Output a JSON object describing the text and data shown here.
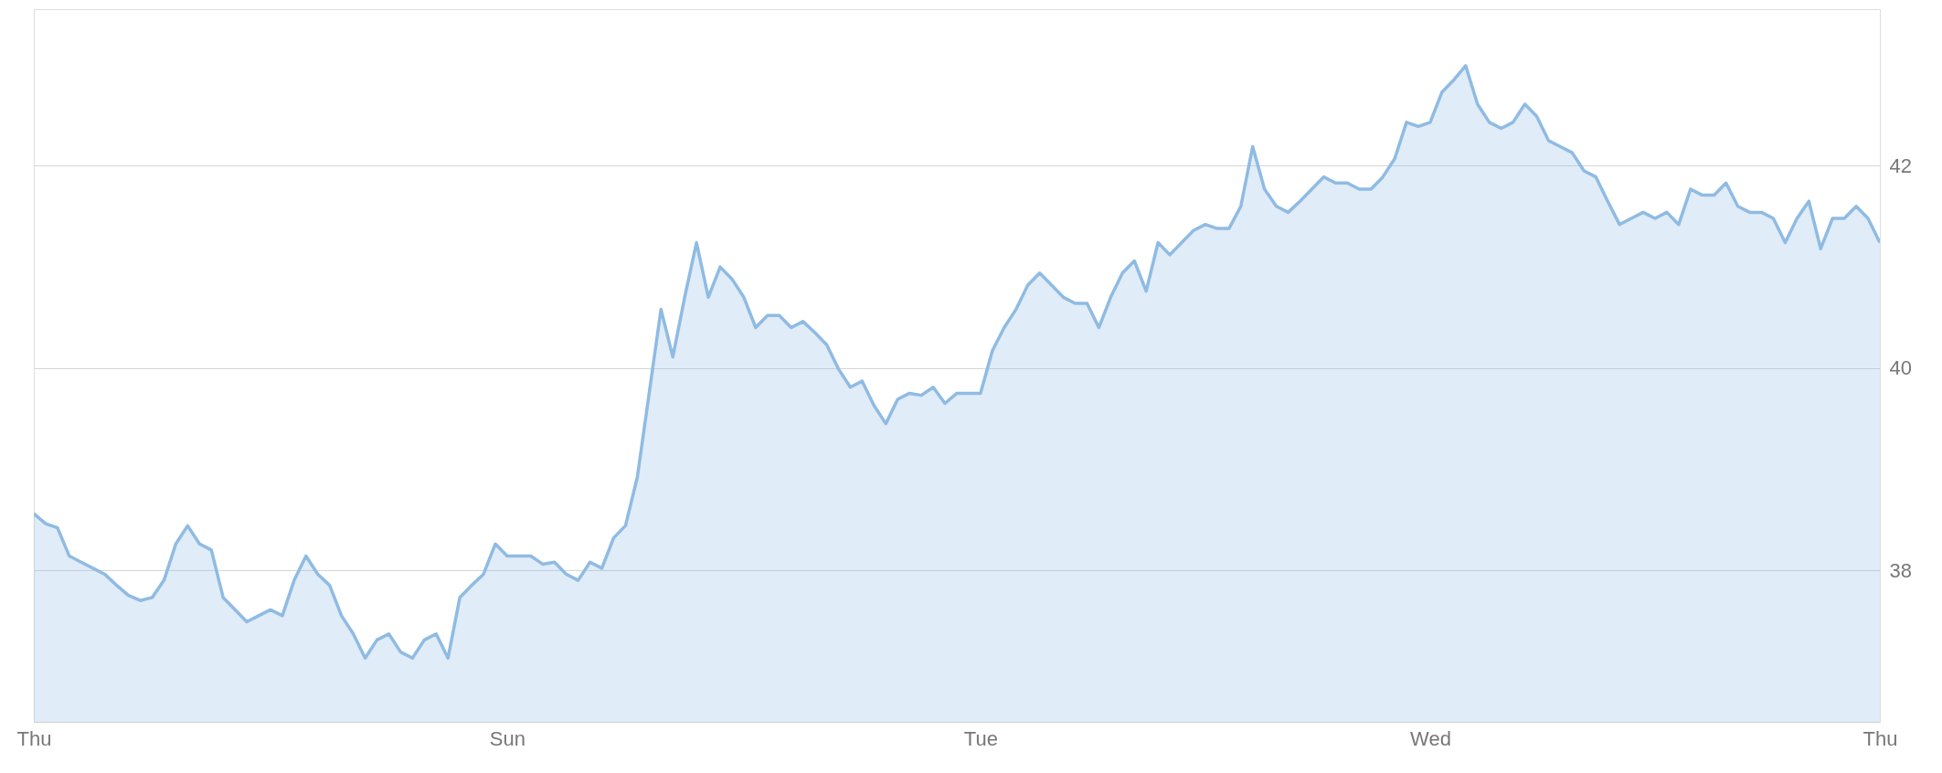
{
  "chart_data": {
    "type": "area",
    "categories": [
      "Thu",
      null,
      null,
      null,
      null,
      null,
      null,
      null,
      null,
      null,
      null,
      null,
      null,
      null,
      null,
      null,
      null,
      null,
      null,
      null,
      null,
      null,
      null,
      null,
      null,
      null,
      null,
      null,
      null,
      null,
      null,
      null,
      null,
      null,
      null,
      null,
      null,
      null,
      null,
      null,
      "Sun",
      null,
      null,
      null,
      null,
      null,
      null,
      null,
      null,
      null,
      null,
      null,
      null,
      null,
      null,
      null,
      null,
      null,
      null,
      null,
      null,
      null,
      null,
      null,
      null,
      null,
      null,
      null,
      null,
      null,
      null,
      null,
      null,
      null,
      null,
      null,
      null,
      null,
      null,
      null,
      "Tue",
      null,
      null,
      null,
      null,
      null,
      null,
      null,
      null,
      null,
      null,
      null,
      null,
      null,
      null,
      null,
      null,
      null,
      null,
      null,
      null,
      null,
      null,
      null,
      null,
      null,
      null,
      null,
      null,
      null,
      null,
      null,
      null,
      null,
      null,
      null,
      null,
      null,
      "Wed",
      null,
      null,
      null,
      null,
      null,
      null,
      null,
      null,
      null,
      null,
      null,
      null,
      null,
      null,
      null,
      null,
      null,
      null,
      null,
      null,
      null,
      null,
      null,
      null,
      null,
      null,
      null,
      null,
      null,
      null,
      null,
      null,
      null,
      null,
      null,
      null,
      null,
      "Thu"
    ],
    "ylim": [
      36.5,
      43.55
    ],
    "yticks": [
      38,
      40,
      42
    ],
    "grid": "y",
    "marker": "none",
    "line_style": "solid",
    "series": [
      {
        "color": "#8fbbe3",
        "values": [
          38.56,
          38.46,
          38.42,
          38.14,
          38.08,
          38.02,
          37.96,
          37.85,
          37.75,
          37.7,
          37.73,
          37.9,
          38.26,
          38.44,
          38.26,
          38.2,
          37.73,
          37.61,
          37.49,
          37.55,
          37.61,
          37.55,
          37.9,
          38.14,
          37.96,
          37.85,
          37.55,
          37.37,
          37.13,
          37.31,
          37.37,
          37.19,
          37.13,
          37.31,
          37.37,
          37.13,
          37.73,
          37.85,
          37.96,
          38.26,
          38.14,
          38.14,
          38.14,
          38.06,
          38.08,
          37.96,
          37.9,
          38.08,
          38.02,
          38.32,
          38.44,
          38.92,
          39.75,
          40.58,
          40.11,
          40.7,
          41.24,
          40.7,
          41.0,
          40.88,
          40.7,
          40.4,
          40.52,
          40.52,
          40.4,
          40.46,
          40.35,
          40.23,
          39.99,
          39.81,
          39.87,
          39.63,
          39.45,
          39.69,
          39.75,
          39.73,
          39.81,
          39.65,
          39.75,
          39.75,
          39.75,
          40.17,
          40.4,
          40.58,
          40.82,
          40.94,
          40.82,
          40.7,
          40.64,
          40.64,
          40.4,
          40.7,
          40.94,
          41.06,
          40.76,
          41.24,
          41.12,
          41.24,
          41.36,
          41.42,
          41.38,
          41.38,
          41.6,
          42.19,
          41.77,
          41.6,
          41.54,
          41.65,
          41.77,
          41.89,
          41.83,
          41.83,
          41.77,
          41.77,
          41.89,
          42.07,
          42.43,
          42.39,
          42.43,
          42.73,
          42.85,
          42.99,
          42.61,
          42.43,
          42.37,
          42.43,
          42.61,
          42.49,
          42.25,
          42.19,
          42.13,
          41.95,
          41.89,
          41.65,
          41.42,
          41.48,
          41.54,
          41.48,
          41.54,
          41.42,
          41.77,
          41.71,
          41.71,
          41.83,
          41.6,
          41.54,
          41.54,
          41.48,
          41.24,
          41.48,
          41.65,
          41.18,
          41.48,
          41.48,
          41.6,
          41.48,
          41.24
        ]
      }
    ]
  }
}
